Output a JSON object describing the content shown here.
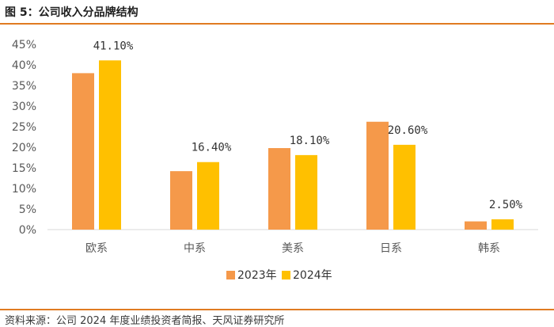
{
  "header": {
    "title": "图 5：公司收入分品牌结构"
  },
  "footer": {
    "source": "资料来源：公司 2024 年度业绩投资者简报、天风证券研究所"
  },
  "colors": {
    "series_2023": "#f5994a",
    "series_2024": "#ffc000",
    "accent_rule": "#e07b22"
  },
  "chart_data": {
    "type": "bar",
    "title": "",
    "xlabel": "",
    "ylabel": "",
    "categories": [
      "欧系",
      "中系",
      "美系",
      "日系",
      "韩系"
    ],
    "series": [
      {
        "name": "2023年",
        "values": [
          38.0,
          14.2,
          19.8,
          26.2,
          2.0
        ]
      },
      {
        "name": "2024年",
        "values": [
          41.1,
          16.4,
          18.1,
          20.6,
          2.5
        ]
      }
    ],
    "data_labels": [
      "41.10%",
      "16.40%",
      "18.10%",
      "20.60%",
      "2.50%"
    ],
    "ylim": [
      0,
      45
    ],
    "yticks": [
      "0%",
      "5%",
      "10%",
      "15%",
      "20%",
      "25%",
      "30%",
      "35%",
      "40%",
      "45%"
    ],
    "grid": false,
    "legend_position": "bottom"
  }
}
